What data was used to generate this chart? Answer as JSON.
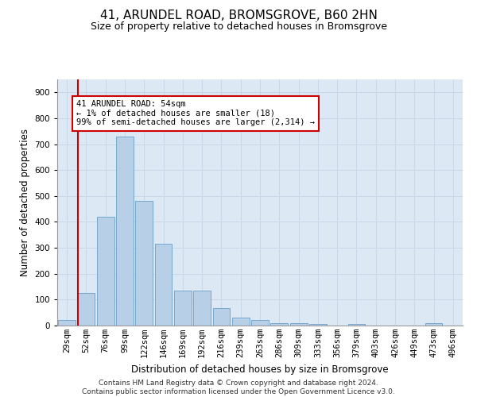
{
  "title": "41, ARUNDEL ROAD, BROMSGROVE, B60 2HN",
  "subtitle": "Size of property relative to detached houses in Bromsgrove",
  "xlabel": "Distribution of detached houses by size in Bromsgrove",
  "ylabel": "Number of detached properties",
  "categories": [
    "29sqm",
    "52sqm",
    "76sqm",
    "99sqm",
    "122sqm",
    "146sqm",
    "169sqm",
    "192sqm",
    "216sqm",
    "239sqm",
    "263sqm",
    "286sqm",
    "309sqm",
    "333sqm",
    "356sqm",
    "379sqm",
    "403sqm",
    "426sqm",
    "449sqm",
    "473sqm",
    "496sqm"
  ],
  "values": [
    20,
    125,
    420,
    730,
    480,
    315,
    135,
    135,
    68,
    30,
    22,
    10,
    10,
    5,
    0,
    5,
    0,
    0,
    0,
    10,
    0
  ],
  "bar_color": "#b8cfe8",
  "bar_edge_color": "#6a9fc8",
  "vline_x": 1,
  "vline_color": "#cc0000",
  "annotation_text": "41 ARUNDEL ROAD: 54sqm\n← 1% of detached houses are smaller (18)\n99% of semi-detached houses are larger (2,314) →",
  "annotation_box_color": "#ffffff",
  "annotation_box_edge_color": "#cc0000",
  "ylim": [
    0,
    950
  ],
  "yticks": [
    0,
    100,
    200,
    300,
    400,
    500,
    600,
    700,
    800,
    900
  ],
  "grid_color": "#c8d8e8",
  "background_color": "#dce8f4",
  "footer_text": "Contains HM Land Registry data © Crown copyright and database right 2024.\nContains public sector information licensed under the Open Government Licence v3.0.",
  "title_fontsize": 11,
  "subtitle_fontsize": 9,
  "xlabel_fontsize": 8.5,
  "ylabel_fontsize": 8.5,
  "tick_fontsize": 7.5,
  "annotation_fontsize": 7.5,
  "footer_fontsize": 6.5
}
